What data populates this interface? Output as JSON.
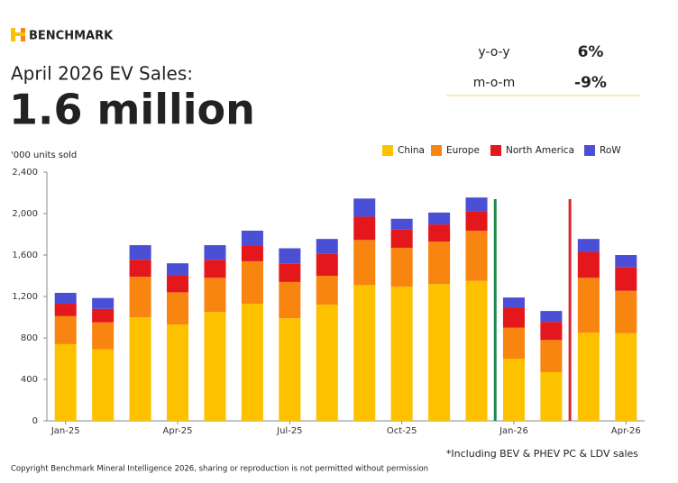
{
  "header": {
    "brand": "BENCHMARK",
    "title": "April 2026 EV Sales:",
    "headline": "1.6 million"
  },
  "kpis": [
    {
      "label": "y-o-y",
      "value": "6%"
    },
    {
      "label": "m-o-m",
      "value": "-9%"
    }
  ],
  "chart_data": {
    "type": "bar",
    "stacked": true,
    "y_label": "'000 units sold",
    "categories": [
      "Jan-25",
      null,
      null,
      "Apr-25",
      null,
      null,
      "Jul-25",
      null,
      null,
      "Oct-25",
      null,
      null,
      "Jan-26",
      null,
      null,
      "Apr-26"
    ],
    "series": [
      {
        "name": "China",
        "color": "#fdc100",
        "values": [
          740,
          690,
          1000,
          930,
          1050,
          1130,
          990,
          1120,
          1310,
          1295,
          1320,
          1350,
          600,
          470,
          850,
          845
        ]
      },
      {
        "name": "Europe",
        "color": "#f7850f",
        "values": [
          270,
          260,
          390,
          310,
          330,
          410,
          350,
          280,
          435,
          375,
          410,
          485,
          300,
          310,
          530,
          410
        ]
      },
      {
        "name": "North America",
        "color": "#e3171c",
        "values": [
          120,
          130,
          165,
          165,
          175,
          155,
          175,
          210,
          225,
          175,
          165,
          190,
          195,
          175,
          250,
          230
        ]
      },
      {
        "name": "RoW",
        "color": "#4b4fd6",
        "values": [
          105,
          105,
          140,
          115,
          140,
          140,
          150,
          145,
          175,
          105,
          115,
          130,
          95,
          105,
          125,
          115
        ]
      }
    ],
    "ylim": [
      0,
      2400
    ],
    "yticks": [
      0,
      400,
      800,
      {
        "value": 1200,
        "label": "1,200"
      },
      {
        "value": 1600,
        "label": "1,600"
      },
      {
        "value": 2000,
        "label": "2,000"
      },
      {
        "value": 2400,
        "label": "2,400"
      }
    ],
    "legend": "top-right"
  },
  "footer": {
    "footnote": "*Including BEV & PHEV PC & LDV sales",
    "copyright": "Copyright Benchmark Mineral Intelligence 2026, sharing or reproduction is not permitted without permission"
  }
}
